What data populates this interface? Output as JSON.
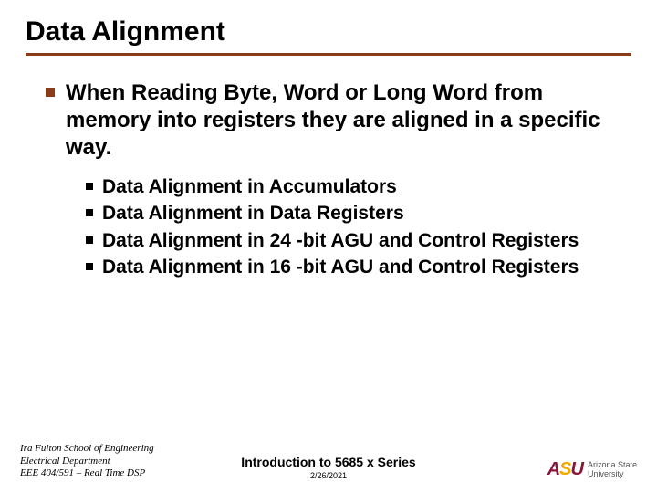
{
  "title": "Data Alignment",
  "mainBullet": "When Reading Byte, Word or Long Word from memory into registers they are aligned in a specific way.",
  "subBullets": [
    "Data Alignment in Accumulators",
    "Data Alignment in Data Registers",
    "Data Alignment in 24 -bit AGU and Control Registers",
    "Data Alignment in 16 -bit AGU and Control Registers"
  ],
  "footer": {
    "left": {
      "line1": "Ira Fulton School of Engineering",
      "line2": "Electrical Department",
      "line3": "EEE 404/591 – Real Time DSP"
    },
    "center": {
      "title": "Introduction to 5685 x Series",
      "date": "2/26/2021"
    },
    "right": {
      "mark": "ASU",
      "textLine1": "Arizona State",
      "textLine2": "University"
    }
  },
  "colors": {
    "accent": "#8a3b1a",
    "asuMaroon": "#8a1538",
    "asuGold": "#f7a800"
  }
}
